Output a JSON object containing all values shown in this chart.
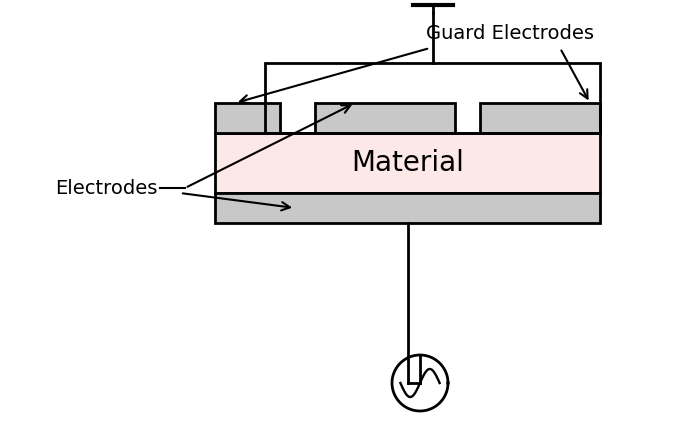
{
  "bg_color": "#ffffff",
  "electrode_color": "#c8c8c8",
  "material_color": "#fde8e8",
  "outline_color": "#000000",
  "lw": 2.0,
  "label_electrodes": "Electrodes",
  "label_guard": "Guard Electrodes",
  "label_material": "Material",
  "fig_width": 7.0,
  "fig_height": 4.43
}
